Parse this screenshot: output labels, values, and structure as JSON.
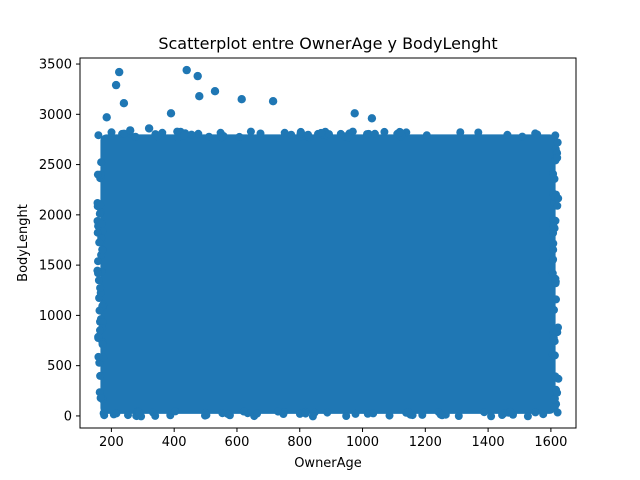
{
  "chart_data": {
    "type": "scatter",
    "title": "Scatterplot entre OwnerAge y BodyLenght",
    "xlabel": "OwnerAge",
    "ylabel": "BodyLenght",
    "xlim": [
      100,
      1680
    ],
    "ylim": [
      -120,
      3560
    ],
    "xticks": [
      200,
      400,
      600,
      800,
      1000,
      1200,
      1400,
      1600
    ],
    "yticks": [
      0,
      500,
      1000,
      1500,
      2000,
      2500,
      3000,
      3500
    ],
    "dense_region": {
      "x": [
        165,
        1615
      ],
      "y": [
        20,
        2800
      ]
    },
    "grid": false,
    "marker_color": "#1f77b4",
    "series": [
      {
        "x": [
          225,
          215,
          440,
          475,
          480,
          530,
          615,
          715,
          975,
          1030,
          390,
          240,
          185,
          260,
          320
        ],
        "y": [
          3420,
          3290,
          3440,
          3380,
          3180,
          3230,
          3150,
          3130,
          3010,
          2960,
          3010,
          3110,
          2970,
          2840,
          2860
        ]
      }
    ]
  }
}
